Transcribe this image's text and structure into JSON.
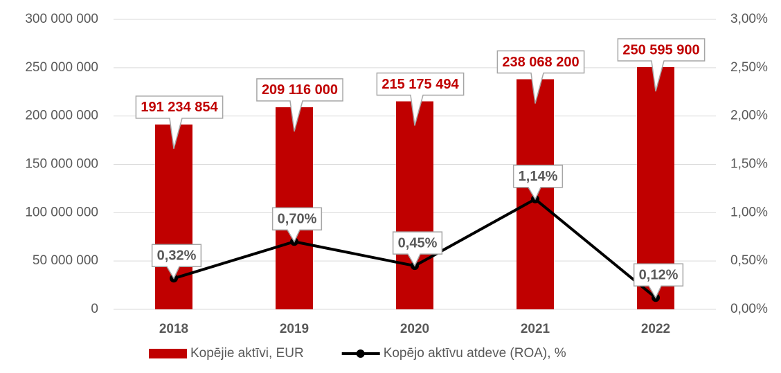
{
  "chart_data": {
    "type": "bar",
    "categories": [
      "2018",
      "2019",
      "2020",
      "2021",
      "2022"
    ],
    "series": [
      {
        "name": "Kopējie aktīvi, EUR",
        "type": "bar",
        "color": "#c00000",
        "values": [
          191234854,
          209116000,
          215175494,
          238068200,
          250595900
        ],
        "value_labels": [
          "191 234 854",
          "209 116 000",
          "215 175 494",
          "238 068 200",
          "250 595 900"
        ]
      },
      {
        "name": "Kopējo aktīvu atdeve (ROA), %",
        "type": "line",
        "color": "#000000",
        "axis": "y2",
        "values": [
          0.32,
          0.7,
          0.45,
          1.14,
          0.12
        ],
        "value_labels": [
          "0,32%",
          "0,70%",
          "0,45%",
          "1,14%",
          "0,12%"
        ]
      }
    ],
    "ylim": [
      0,
      300000000
    ],
    "yticks": [
      0,
      {
        "value": 50000000,
        "label": "50 000 000"
      },
      {
        "value": 100000000,
        "label": "100 000 000"
      },
      {
        "value": 150000000,
        "label": "150 000 000"
      },
      {
        "value": 200000000,
        "label": "200 000 000"
      },
      {
        "value": 250000000,
        "label": "250 000 000"
      },
      {
        "value": 300000000,
        "label": "300 000 000"
      }
    ],
    "y2lim": [
      0,
      3
    ],
    "y2ticks": [
      {
        "value": 0,
        "label": "0,00%"
      },
      {
        "value": 0.5,
        "label": "0,50%"
      },
      {
        "value": 1,
        "label": "1,00%"
      },
      {
        "value": 1.5,
        "label": "1,50%"
      },
      {
        "value": 2,
        "label": "2,00%"
      },
      {
        "value": 2.5,
        "label": "2,50%"
      },
      {
        "value": 3,
        "label": "3,00%"
      }
    ],
    "grid": true,
    "legend": "bottom"
  }
}
